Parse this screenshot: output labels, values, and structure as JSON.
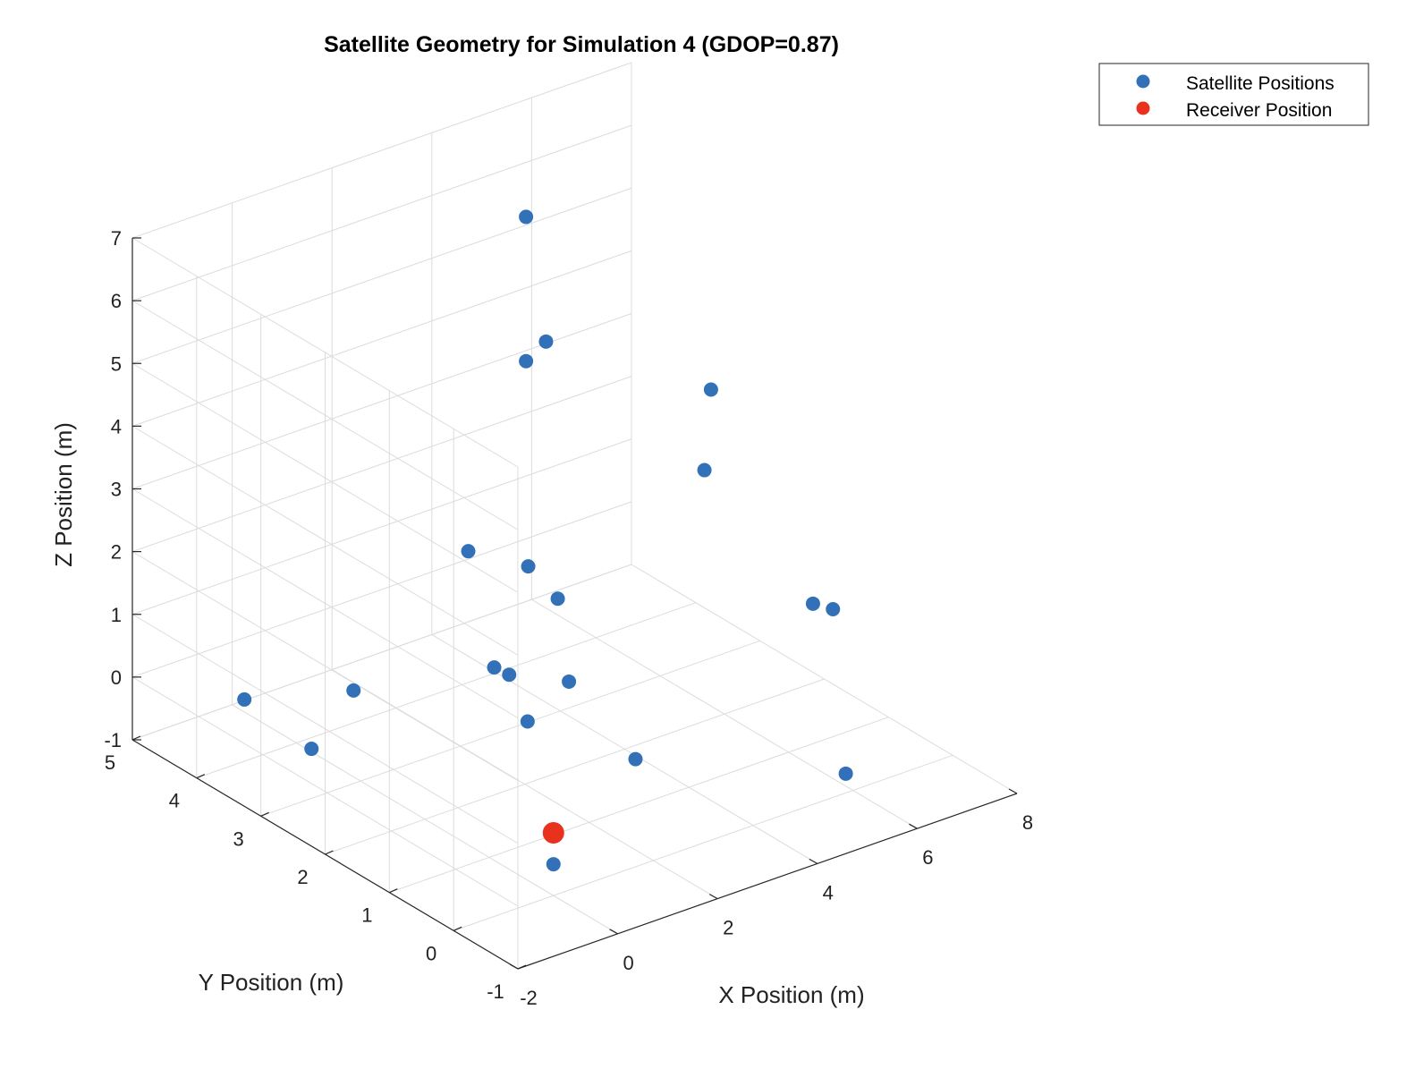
{
  "chart_data": {
    "type": "scatter",
    "title": "Satellite Geometry for Simulation 4 (GDOP=0.87)",
    "xlabel": "X Position (m)",
    "ylabel": "Y Position (m)",
    "zlabel": "Z Position (m)",
    "xlim": [
      -2,
      8
    ],
    "ylim": [
      -1,
      5
    ],
    "zlim": [
      -1,
      7
    ],
    "x_ticks": [
      "-2",
      "0",
      "2",
      "4",
      "6",
      "8"
    ],
    "y_ticks": [
      "-1",
      "0",
      "1",
      "2",
      "3",
      "4",
      "5"
    ],
    "z_ticks": [
      "-1",
      "0",
      "1",
      "2",
      "3",
      "4",
      "5",
      "6",
      "7"
    ],
    "grid": true,
    "view": "3d",
    "legend_position": "top-right outside",
    "series": [
      {
        "name": "Satellite Positions",
        "color": "#3271B8",
        "marker": "circle",
        "points": [
          [
            5.2,
            0.0,
            2.2
          ],
          [
            5.6,
            0.0,
            2.0
          ],
          [
            0.1,
            1.0,
            2.0
          ],
          [
            0.4,
            1.0,
            1.8
          ],
          [
            5.0,
            4.0,
            4.0
          ],
          [
            4.6,
            4.0,
            3.8
          ],
          [
            3.8,
            0.5,
            5.7
          ],
          [
            4.6,
            4.0,
            6.1
          ],
          [
            5.6,
            2.0,
            3.0
          ],
          [
            4.0,
            3.5,
            1.0
          ],
          [
            3.7,
            4.2,
            0.9
          ],
          [
            1.0,
            -0.5,
            1.2
          ],
          [
            0.5,
            3.5,
            0.0
          ],
          [
            3.4,
            2.4,
            0.0
          ],
          [
            0.0,
            0.0,
            -0.5
          ],
          [
            2.7,
            2.5,
            -0.5
          ],
          [
            5.6,
            -0.2,
            -0.5
          ],
          [
            -0.6,
            3.3,
            -0.5
          ],
          [
            -0.4,
            4.5,
            -0.5
          ],
          [
            -0.3,
            -0.3,
            4.0
          ]
        ]
      },
      {
        "name": "Receiver Position",
        "color": "#E8321E",
        "marker": "circle",
        "points": [
          [
            0,
            0,
            0
          ]
        ]
      }
    ]
  }
}
